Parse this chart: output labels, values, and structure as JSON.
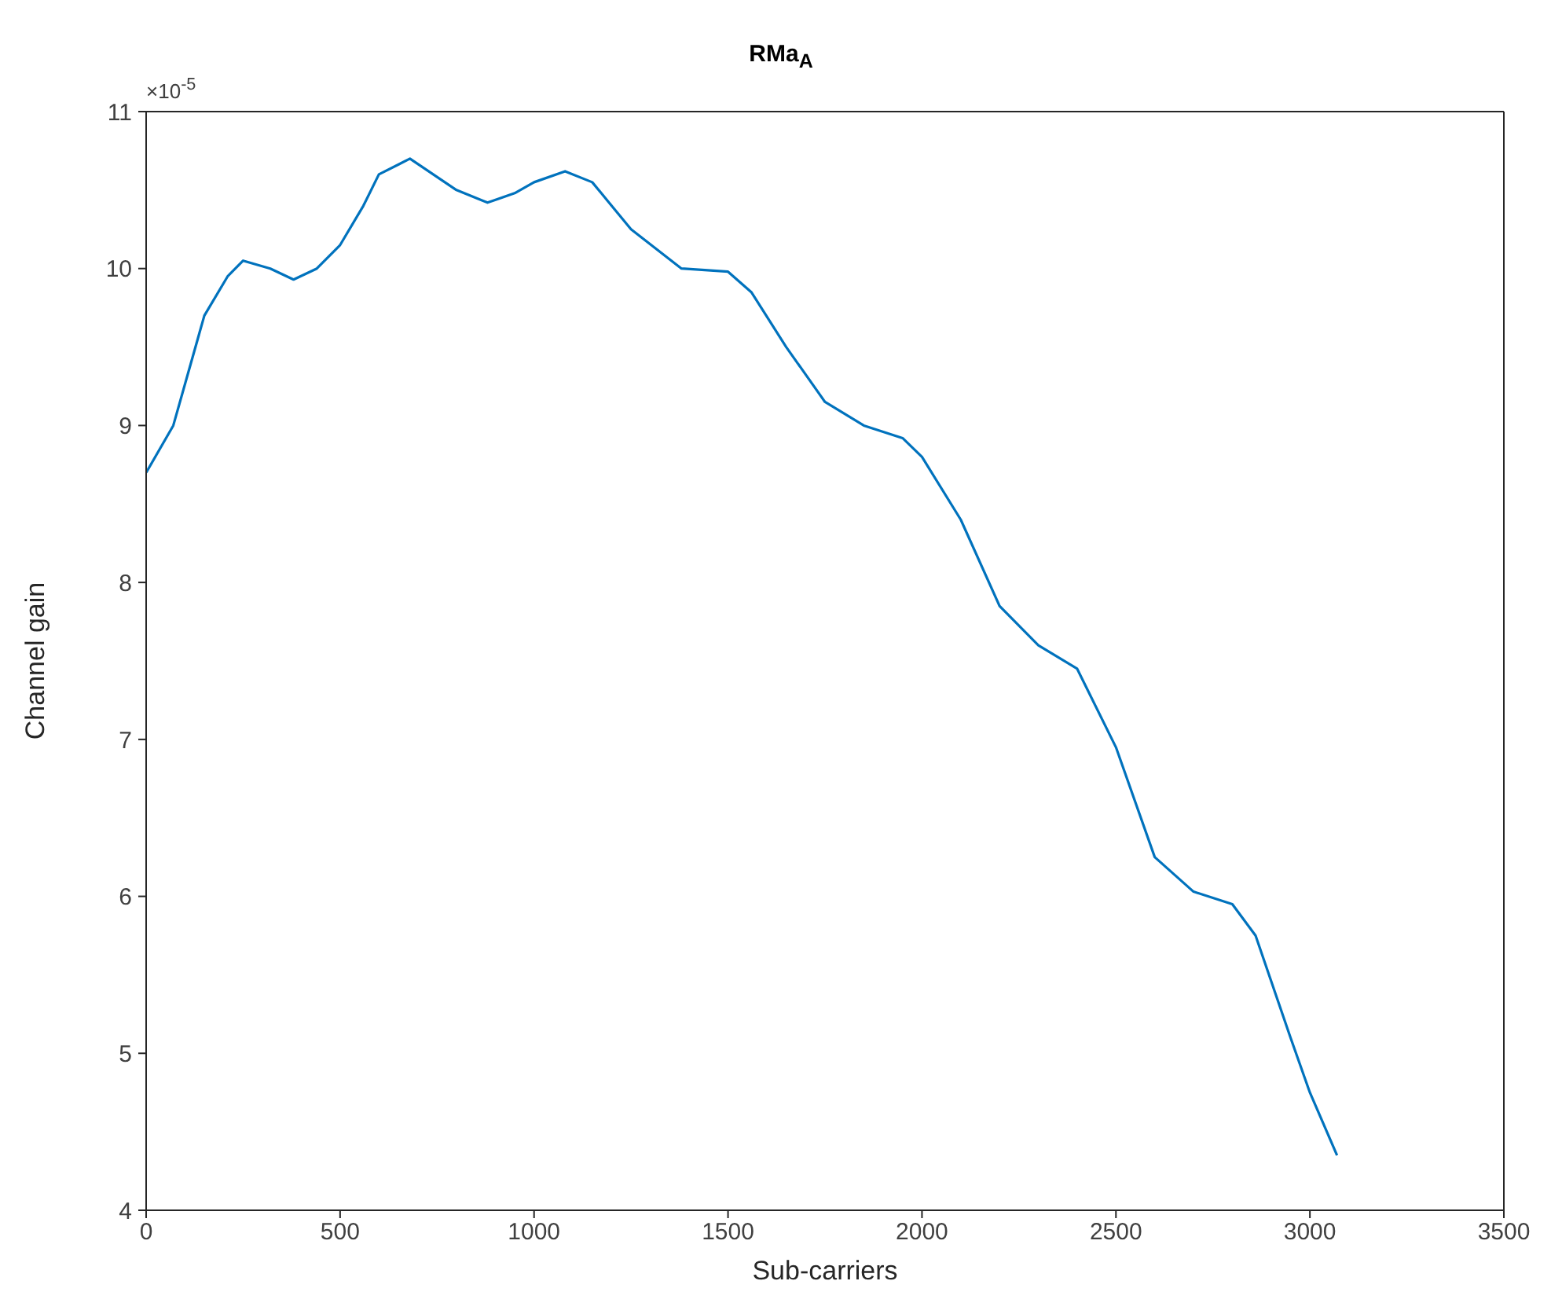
{
  "chart_data": {
    "type": "line",
    "title": "RMa$_{A}$",
    "xlabel": "Sub-carriers",
    "ylabel": "Channel gain",
    "annotations": [
      "×10$^{-5}$"
    ],
    "x": [
      0,
      70,
      150,
      210,
      250,
      320,
      380,
      440,
      500,
      560,
      600,
      680,
      740,
      800,
      880,
      950,
      1000,
      1080,
      1150,
      1250,
      1380,
      1500,
      1560,
      1650,
      1750,
      1850,
      1950,
      2000,
      2100,
      2200,
      2300,
      2400,
      2500,
      2600,
      2700,
      2800,
      2860,
      2950,
      3000,
      3070
    ],
    "series": [
      {
        "color": "#0072bd",
        "values": [
          8.7,
          9.0,
          9.7,
          9.95,
          10.05,
          10.0,
          9.93,
          10.0,
          10.15,
          10.4,
          10.6,
          10.7,
          10.6,
          10.5,
          10.42,
          10.48,
          10.55,
          10.62,
          10.55,
          10.25,
          10.0,
          9.98,
          9.85,
          9.5,
          9.15,
          9.0,
          8.92,
          8.8,
          8.4,
          7.85,
          7.6,
          7.45,
          6.95,
          6.25,
          6.03,
          5.95,
          5.75,
          5.1,
          4.75,
          4.35
        ]
      }
    ],
    "xlim": [
      0,
      3500
    ],
    "xticks": [
      0,
      500,
      1000,
      1500,
      2000,
      2500,
      3000,
      3500
    ],
    "ylim": [
      4,
      11
    ],
    "yticks": [
      4,
      5,
      6,
      7,
      8,
      9,
      10,
      11
    ],
    "grid": false,
    "legend": false,
    "marker": "none",
    "line_style": "solid"
  }
}
